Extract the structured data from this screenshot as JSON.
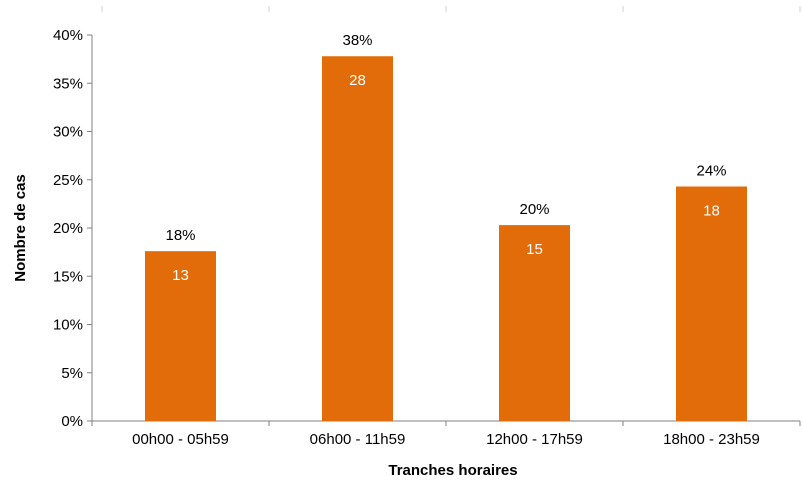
{
  "chart_data": {
    "type": "bar",
    "xlabel": "Tranches horaires",
    "ylabel": "Nombre de cas",
    "ylim": [
      0,
      40
    ],
    "yticks": [
      "0%",
      "5%",
      "10%",
      "15%",
      "20%",
      "25%",
      "30%",
      "35%",
      "40%"
    ],
    "categories": [
      "00h00 - 05h59",
      "06h00 - 11h59",
      "12h00 - 17h59",
      "18h00 - 23h59"
    ],
    "values": [
      17.6,
      37.8,
      20.3,
      24.3
    ],
    "percent_labels": [
      "18%",
      "38%",
      "20%",
      "24%"
    ],
    "count_labels": [
      "13",
      "28",
      "15",
      "18"
    ],
    "bar_color": "#E36C0A",
    "grid": false,
    "legend": "none"
  }
}
